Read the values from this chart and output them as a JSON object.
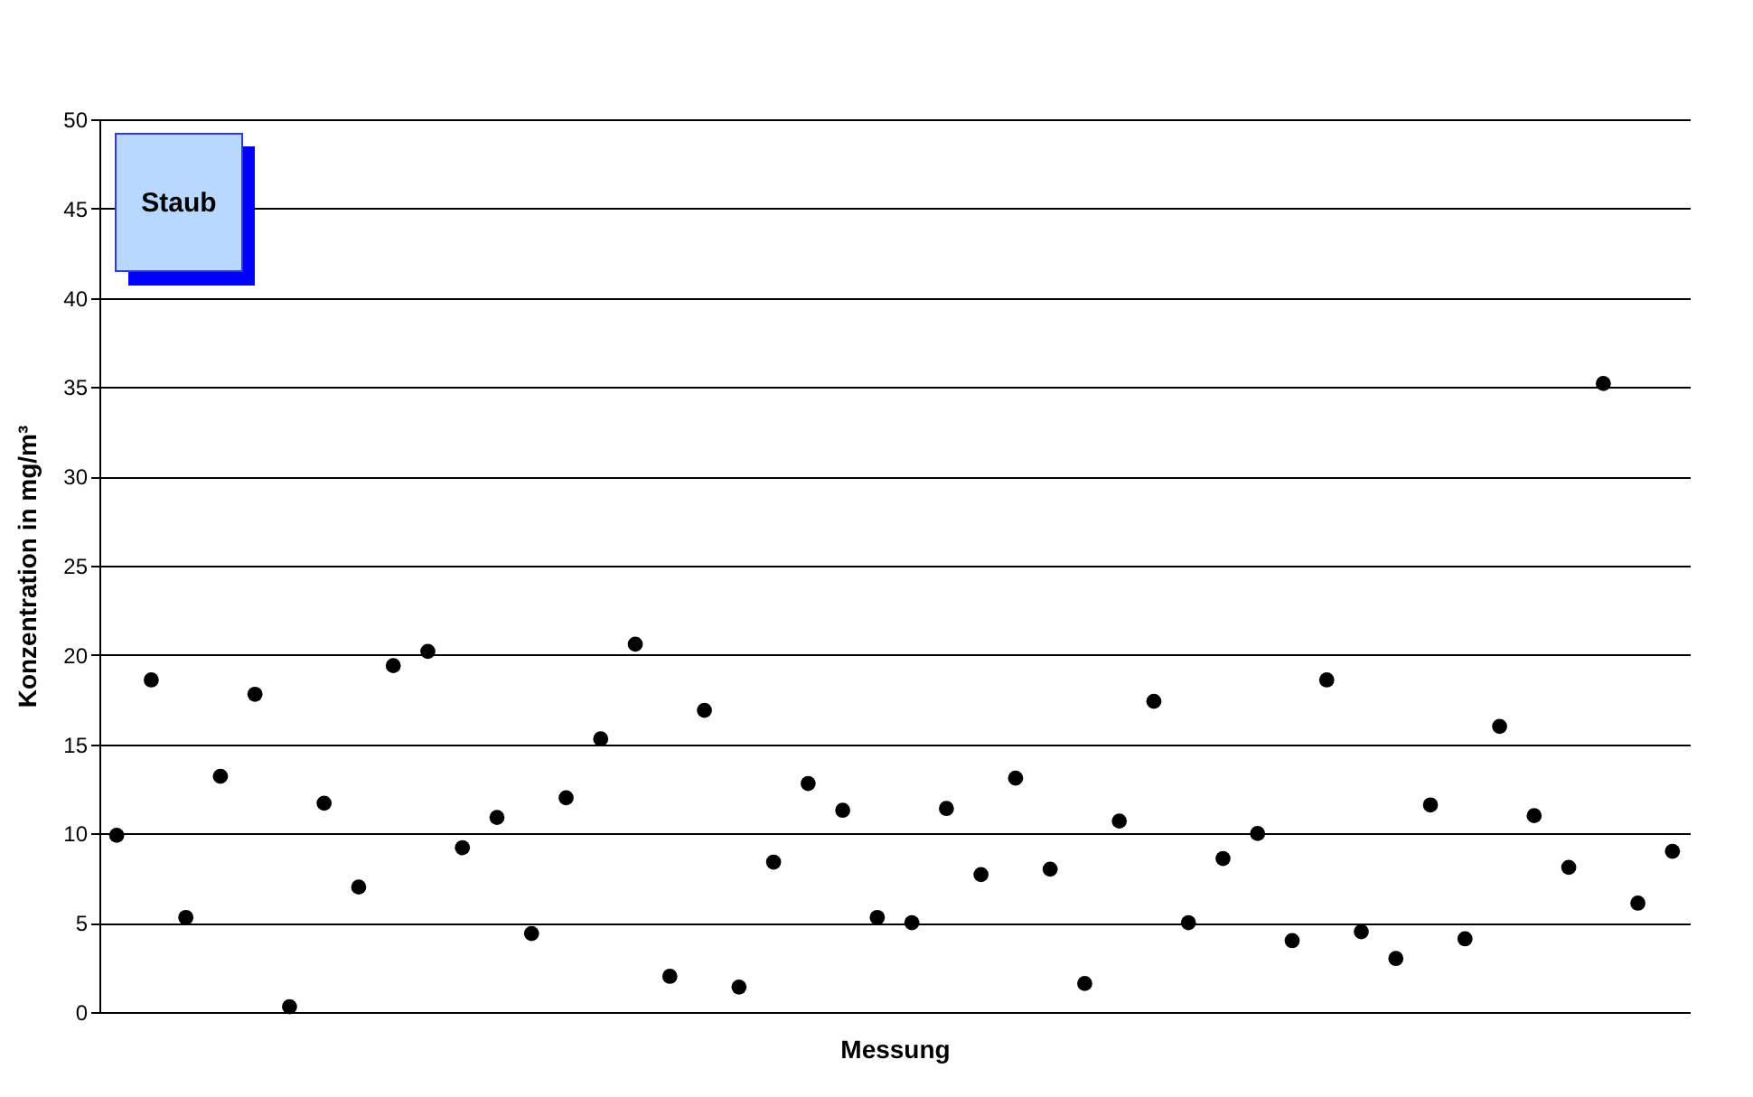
{
  "chart_data": {
    "type": "scatter",
    "xlabel": "Messung",
    "ylabel": "Konzentration in mg/m³",
    "annotations": [
      "Staub"
    ],
    "categories": [
      null,
      null,
      null,
      null,
      null,
      null,
      null,
      null,
      null,
      null,
      null,
      null,
      null,
      null,
      null,
      null,
      null,
      null,
      null,
      null,
      null,
      null,
      null,
      null,
      null,
      null,
      null,
      null,
      null,
      null,
      null,
      null,
      null,
      null,
      null,
      null,
      null,
      null,
      null,
      null,
      null,
      null,
      null,
      null,
      null,
      null
    ],
    "series": [
      {
        "color": "#000000",
        "values": [
          9.9,
          18.6,
          5.3,
          13.2,
          17.8,
          0.3,
          11.7,
          7.0,
          19.4,
          20.2,
          9.2,
          10.9,
          4.4,
          12.0,
          15.3,
          20.6,
          2.0,
          16.9,
          1.4,
          8.4,
          12.8,
          11.3,
          5.3,
          5.0,
          11.4,
          7.7,
          13.1,
          8.0,
          1.6,
          10.7,
          17.4,
          5.0,
          8.6,
          10.0,
          4.0,
          18.6,
          4.5,
          3.0,
          11.6,
          4.1,
          16.0,
          11.0,
          8.1,
          35.2,
          6.1,
          9.0
        ]
      }
    ],
    "ylim": [
      0,
      50
    ],
    "yticks": [
      0,
      5,
      10,
      15,
      20,
      25,
      30,
      35,
      40,
      45,
      50
    ],
    "grid": "y",
    "legend": false,
    "marker": "circle",
    "tick_labels": "y"
  }
}
